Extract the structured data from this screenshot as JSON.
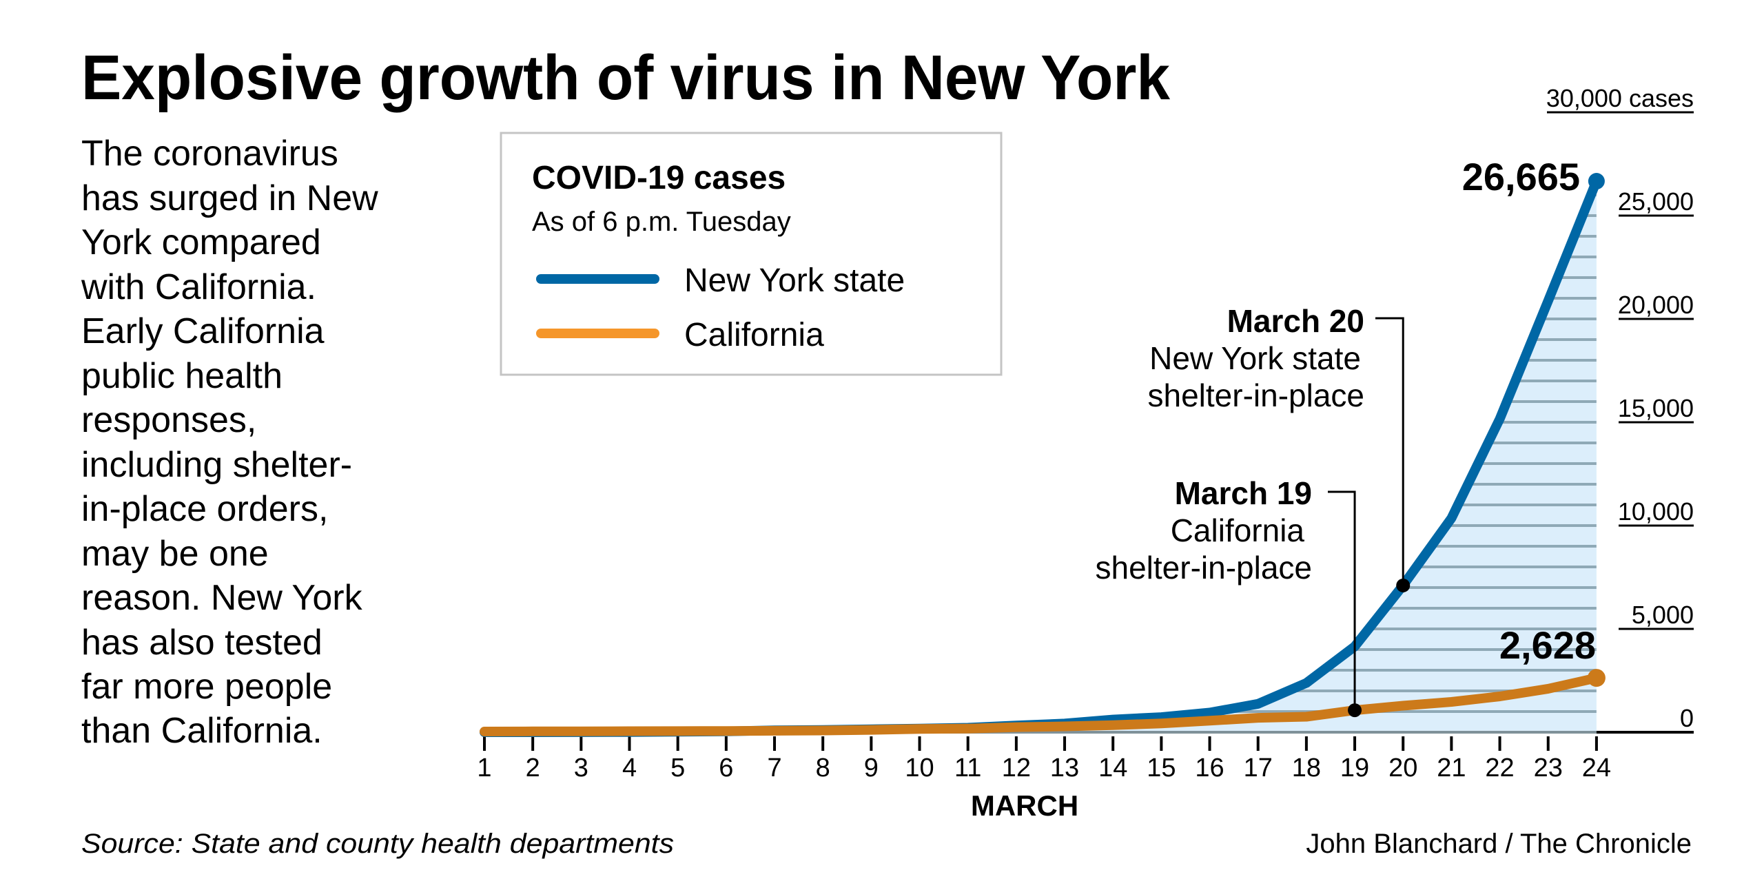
{
  "title": "Explosive growth of virus in New York",
  "intro_lines": [
    "The coronavirus",
    "has surged in New",
    "York compared",
    "with California.",
    "Early California",
    "public health",
    "responses,",
    "including shelter-",
    "in-place orders,",
    "may be one",
    "reason. New York",
    "has also tested",
    "far more people",
    "than California."
  ],
  "legend": {
    "title": "COVID-19 cases",
    "subtitle": "As of 6 p.m. Tuesday",
    "items": [
      {
        "label": "New York state",
        "color": "#0067a5"
      },
      {
        "label": "California",
        "color": "#f5962a"
      }
    ]
  },
  "chart_data": {
    "type": "line",
    "title": "Explosive growth of virus in New York",
    "xlabel": "MARCH",
    "ylabel": "",
    "x": [
      1,
      2,
      3,
      4,
      5,
      6,
      7,
      8,
      9,
      10,
      11,
      12,
      13,
      14,
      15,
      16,
      17,
      18,
      19,
      20,
      21,
      22,
      23,
      24
    ],
    "ylim": [
      0,
      30000
    ],
    "yticks": [
      0,
      5000,
      10000,
      15000,
      20000,
      25000,
      30000
    ],
    "ytick_labels": [
      "0",
      "5,000",
      "10,000",
      "15,000",
      "20,000",
      "25,000",
      "30,000 cases"
    ],
    "grid": "horizontal lines every 1,000 inside New York area fill",
    "series": [
      {
        "name": "New York state",
        "color": "#0067a5",
        "values": [
          1,
          1,
          2,
          11,
          22,
          44,
          89,
          106,
          142,
          173,
          216,
          328,
          421,
          613,
          729,
          950,
          1374,
          2382,
          4152,
          7102,
          10356,
          15168,
          20875,
          26665
        ],
        "end_label": "26,665"
      },
      {
        "name": "California",
        "color": "#cc7a1a",
        "values": [
          35,
          40,
          45,
          50,
          53,
          60,
          70,
          85,
          114,
          157,
          177,
          247,
          282,
          340,
          426,
          557,
          698,
          751,
          1063,
          1283,
          1468,
          1733,
          2102,
          2628
        ],
        "end_label": "2,628"
      }
    ],
    "annotations": [
      {
        "x": 20,
        "series": "New York state",
        "title": "March 20",
        "lines": [
          "New York state",
          "shelter-in-place"
        ]
      },
      {
        "x": 19,
        "series": "California",
        "title": "March 19",
        "lines": [
          "California",
          "shelter-in-place"
        ]
      }
    ],
    "fill_color": "#dceefb",
    "grid_color": "#8fa9b6"
  },
  "source": "Source: State and county health departments",
  "credit": "John Blanchard / The Chronicle"
}
